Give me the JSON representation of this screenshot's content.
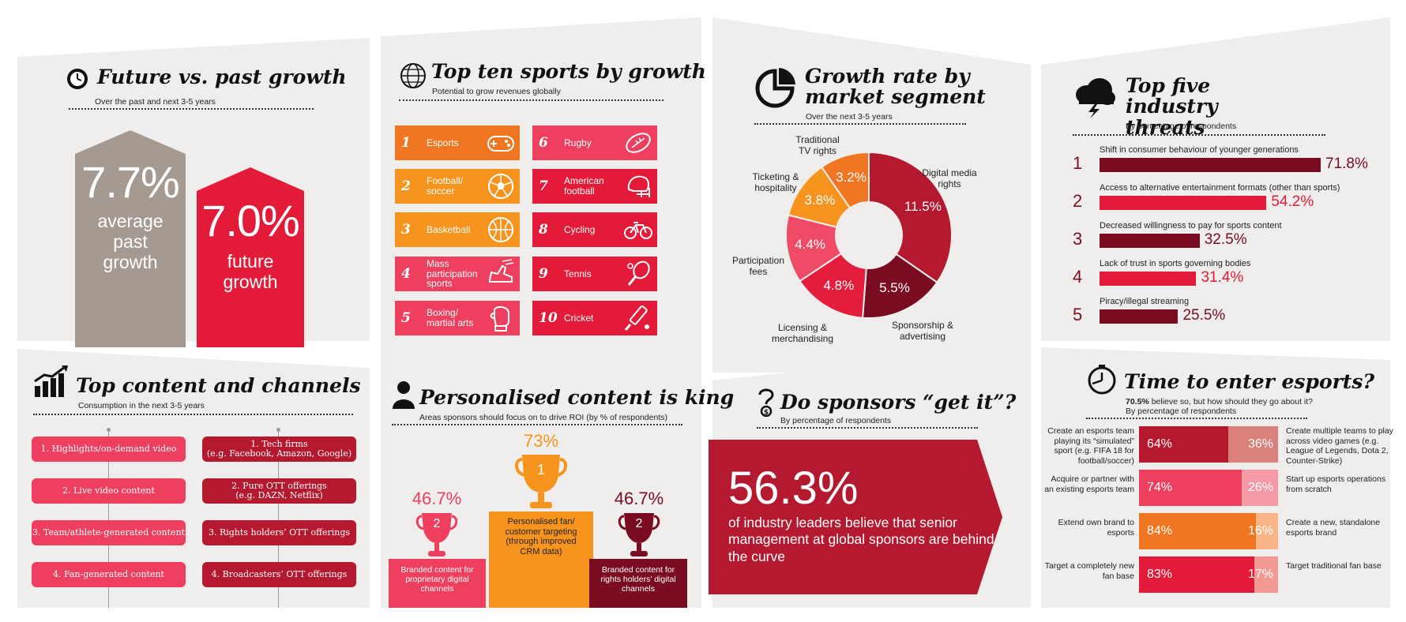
{
  "future_growth": {
    "title": "Future vs. past growth",
    "subtitle": "Over the past and next 3-5 years",
    "past_value": "7.7%",
    "past_label": "average past growth",
    "future_value": "7.0%",
    "future_label": "future growth"
  },
  "top_sports": {
    "title": "Top ten sports by growth",
    "subtitle": "Potential to grow revenues globally",
    "items": [
      {
        "rank": "1",
        "name": "Esports",
        "icon": "gamepad-icon",
        "color": "#f07621"
      },
      {
        "rank": "2",
        "name": "Football/ soccer",
        "icon": "soccer-ball-icon",
        "color": "#f7941d"
      },
      {
        "rank": "3",
        "name": "Basketball",
        "icon": "basketball-icon",
        "color": "#f7941d"
      },
      {
        "rank": "4",
        "name": "Mass participation sports",
        "icon": "running-shoe-icon",
        "color": "#ee3f5f"
      },
      {
        "rank": "5",
        "name": "Boxing/ martial arts",
        "icon": "boxing-glove-icon",
        "color": "#ee3f5f"
      },
      {
        "rank": "6",
        "name": "Rugby",
        "icon": "rugby-ball-icon",
        "color": "#ee3f5f"
      },
      {
        "rank": "7",
        "name": "American football",
        "icon": "football-helmet-icon",
        "color": "#e31b38"
      },
      {
        "rank": "8",
        "name": "Cycling",
        "icon": "bicycle-icon",
        "color": "#e31b38"
      },
      {
        "rank": "9",
        "name": "Tennis",
        "icon": "tennis-racket-icon",
        "color": "#e31b38"
      },
      {
        "rank": "10",
        "name": "Cricket",
        "icon": "cricket-bat-icon",
        "color": "#e31b38"
      }
    ]
  },
  "segments": {
    "title": "Growth rate by market segment",
    "subtitle": "Over the next 3-5 years",
    "chart_data": {
      "type": "pie",
      "categories": [
        "Digital media rights",
        "Sponsorship & advertising",
        "Licensing & merchandising",
        "Participation fees",
        "Ticketing & hospitality",
        "Traditional TV rights"
      ],
      "values": [
        11.5,
        5.5,
        4.8,
        4.4,
        3.8,
        3.2
      ],
      "value_labels": [
        "11.5%",
        "5.5%",
        "4.8%",
        "4.4%",
        "3.8%",
        "3.2%"
      ],
      "labels": [
        "Digital media\nrights",
        "Sponsorship &\nadvertising",
        "Licensing &\nmerchandising",
        "Participation\nfees",
        "Ticketing &\nhospitality",
        "Traditional\nTV rights"
      ],
      "colors": [
        "#b5192f",
        "#7a0c22",
        "#e51d3c",
        "#ef4a66",
        "#f7941d",
        "#f07621"
      ]
    }
  },
  "threats": {
    "title": "Top five industry threats",
    "subtitle": "By percentage of respondents",
    "chart_data": {
      "type": "bar",
      "orientation": "horizontal",
      "categories": [
        "Shift in consumer behaviour of younger generations",
        "Access to alternative entertainment formats (other than sports)",
        "Decreased willingness to pay for sports content",
        "Lack of trust in sports governing bodies",
        "Piracy/illegal streaming"
      ],
      "values": [
        71.8,
        54.2,
        32.5,
        31.4,
        25.5
      ],
      "value_labels": [
        "71.8%",
        "54.2%",
        "32.5%",
        "31.4%",
        "25.5%"
      ],
      "ranks": [
        "1",
        "2",
        "3",
        "4",
        "5"
      ],
      "colors": [
        "#7a0c22",
        "#e31b38",
        "#7a0c22",
        "#e31b38",
        "#7a0c22"
      ]
    }
  },
  "content": {
    "title": "Top content and channels",
    "subtitle": "Consumption in the next 3-5 years",
    "left": [
      "1. Highlights/on-demand video",
      "2. Live video content",
      "3. Team/athlete-generated content",
      "4. Fan-generated content"
    ],
    "right": [
      "1. Tech firms\n(e.g. Facebook, Amazon, Google)",
      "2. Pure OTT offerings\n(e.g. DAZN, Netflix)",
      "3. Rights holders’ OTT offerings",
      "4. Broadcasters’ OTT offerings"
    ]
  },
  "personalised": {
    "title": "Personalised content is king",
    "subtitle": "Areas sponsors should focus on to drive ROI (by % of respondents)",
    "first": {
      "rank": "1",
      "value": "73%",
      "label": "Personalised fan/ customer targeting (through improved CRM data)"
    },
    "second_left": {
      "rank": "2",
      "value": "46.7%",
      "label": "Branded content for proprietary digital channels"
    },
    "second_right": {
      "rank": "2",
      "value": "46.7%",
      "label": "Branded content for rights holders’ digital channels"
    }
  },
  "sponsors": {
    "title": "Do sponsors “get it”?",
    "subtitle": "By percentage of respondents",
    "value": "56.3%",
    "text": "of industry leaders believe that senior management at global sponsors are behind the curve"
  },
  "esports": {
    "title": "Time to enter esports?",
    "intro_bold": "70.5%",
    "intro": " believe so, but how should they go about it?",
    "subtitle": "By percentage of respondents",
    "chart_data": {
      "type": "bar",
      "stacked": true,
      "orientation": "horizontal",
      "rows": [
        {
          "left": "Create an esports team playing its “simulated” sport (e.g. FIFA 18 for football/soccer)",
          "left_value": 64,
          "left_label": "64%",
          "right": "Create multiple teams to play across video games (e.g. League of Legends, Dota 2, Counter-Strike)",
          "right_value": 36,
          "right_label": "36%",
          "color_a": "#b5192f",
          "color_b": "#d9817a"
        },
        {
          "left": "Acquire or partner with an existing esports team",
          "left_value": 74,
          "left_label": "74%",
          "right": "Start up esports operations from scratch",
          "right_value": 26,
          "right_label": "26%",
          "color_a": "#ee3f5f",
          "color_b": "#f59aa6"
        },
        {
          "left": "Extend own brand to esports",
          "left_value": 84,
          "left_label": "84%",
          "right": "Create a new, standalone esports brand",
          "right_value": 16,
          "right_label": "16%",
          "color_a": "#f07621",
          "color_b": "#f9b488"
        },
        {
          "left": "Target a completely new fan base",
          "left_value": 83,
          "left_label": "83%",
          "right": "Target traditional fan base",
          "right_value": 17,
          "right_label": "17%",
          "color_a": "#e31b38",
          "color_b": "#f49a92"
        }
      ]
    }
  }
}
